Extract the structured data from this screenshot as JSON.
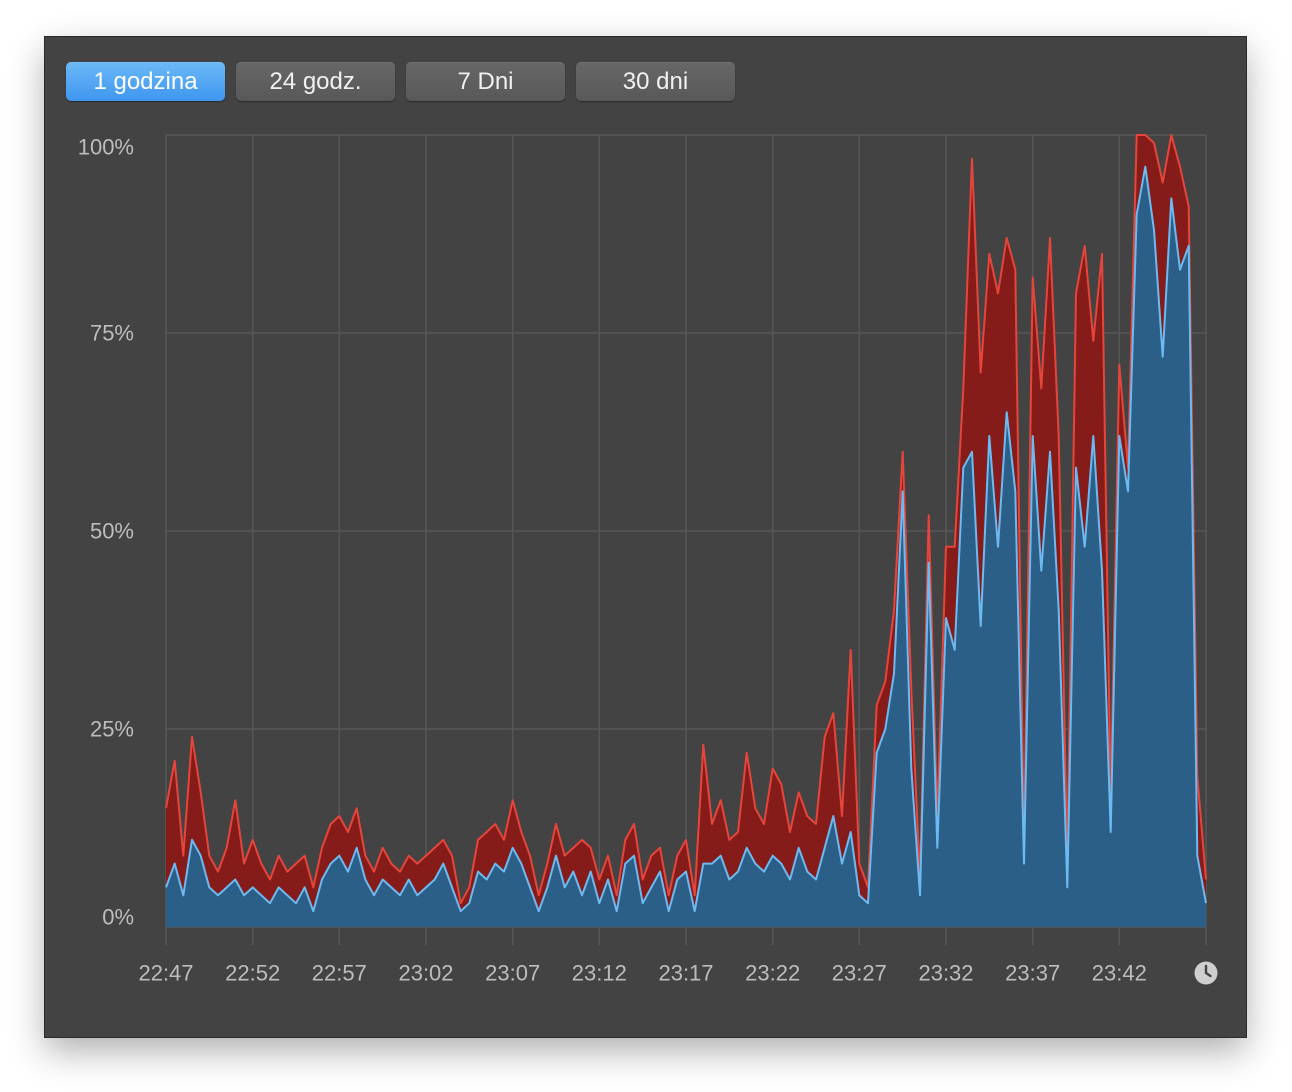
{
  "tabs": [
    {
      "label": "1 godzina",
      "selected": true
    },
    {
      "label": "24 godz.",
      "selected": false
    },
    {
      "label": "7 Dni",
      "selected": false
    },
    {
      "label": "30 dni",
      "selected": false
    }
  ],
  "icons": {
    "time_options": "clock-icon"
  },
  "colors": {
    "window_background": "#434343",
    "selected_tab": "#4a9ff0",
    "tab": "#5f5f5f",
    "grid": "#575757",
    "axis_label": "#bdbdbd"
  },
  "chart_data": {
    "type": "area",
    "stacked": true,
    "grid": true,
    "legend": "none",
    "ylim": [
      0,
      100
    ],
    "yticks": [
      0,
      25,
      50,
      75,
      100
    ],
    "ytick_labels": [
      "0%",
      "25%",
      "50%",
      "75%",
      "100%"
    ],
    "xlim": [
      "22:47:00",
      "23:47:00"
    ],
    "xtick_labels": [
      "22:47",
      "22:52",
      "22:57",
      "23:02",
      "23:07",
      "23:12",
      "23:17",
      "23:22",
      "23:27",
      "23:32",
      "23:37",
      "23:42"
    ],
    "x": [
      "22:47:00",
      "22:47:30",
      "22:48:00",
      "22:48:30",
      "22:49:00",
      "22:49:30",
      "22:50:00",
      "22:50:30",
      "22:51:00",
      "22:51:30",
      "22:52:00",
      "22:52:30",
      "22:53:00",
      "22:53:30",
      "22:54:00",
      "22:54:30",
      "22:55:00",
      "22:55:30",
      "22:56:00",
      "22:56:30",
      "22:57:00",
      "22:57:30",
      "22:58:00",
      "22:58:30",
      "22:59:00",
      "22:59:30",
      "23:00:00",
      "23:00:30",
      "23:01:00",
      "23:01:30",
      "23:02:00",
      "23:02:30",
      "23:03:00",
      "23:03:30",
      "23:04:00",
      "23:04:30",
      "23:05:00",
      "23:05:30",
      "23:06:00",
      "23:06:30",
      "23:07:00",
      "23:07:30",
      "23:08:00",
      "23:08:30",
      "23:09:00",
      "23:09:30",
      "23:10:00",
      "23:10:30",
      "23:11:00",
      "23:11:30",
      "23:12:00",
      "23:12:30",
      "23:13:00",
      "23:13:30",
      "23:14:00",
      "23:14:30",
      "23:15:00",
      "23:15:30",
      "23:16:00",
      "23:16:30",
      "23:17:00",
      "23:17:30",
      "23:18:00",
      "23:18:30",
      "23:19:00",
      "23:19:30",
      "23:20:00",
      "23:20:30",
      "23:21:00",
      "23:21:30",
      "23:22:00",
      "23:22:30",
      "23:23:00",
      "23:23:30",
      "23:24:00",
      "23:24:30",
      "23:25:00",
      "23:25:30",
      "23:26:00",
      "23:26:30",
      "23:27:00",
      "23:27:30",
      "23:28:00",
      "23:28:30",
      "23:29:00",
      "23:29:30",
      "23:30:00",
      "23:30:30",
      "23:31:00",
      "23:31:30",
      "23:32:00",
      "23:32:30",
      "23:33:00",
      "23:33:30",
      "23:34:00",
      "23:34:30",
      "23:35:00",
      "23:35:30",
      "23:36:00",
      "23:36:30",
      "23:37:00",
      "23:37:30",
      "23:38:00",
      "23:38:30",
      "23:39:00",
      "23:39:30",
      "23:40:00",
      "23:40:30",
      "23:41:00",
      "23:41:30",
      "23:42:00",
      "23:42:30",
      "23:43:00",
      "23:43:30",
      "23:44:00",
      "23:44:30",
      "23:45:00",
      "23:45:30",
      "23:46:00",
      "23:46:30",
      "23:47:00"
    ],
    "series": [
      {
        "color": "#6cbaf2",
        "fill": "#2c5f87",
        "values": [
          5,
          8,
          4,
          11,
          9,
          5,
          4,
          5,
          6,
          4,
          5,
          4,
          3,
          5,
          4,
          3,
          5,
          2,
          6,
          8,
          9,
          7,
          10,
          6,
          4,
          6,
          5,
          4,
          6,
          4,
          5,
          6,
          8,
          5,
          2,
          3,
          7,
          6,
          8,
          7,
          10,
          8,
          5,
          2,
          5,
          9,
          5,
          7,
          4,
          7,
          3,
          6,
          2,
          8,
          9,
          3,
          5,
          7,
          2,
          6,
          7,
          2,
          8,
          8,
          9,
          6,
          7,
          10,
          8,
          7,
          9,
          8,
          6,
          10,
          7,
          6,
          10,
          14,
          8,
          12,
          4,
          3,
          22,
          25,
          32,
          55,
          20,
          4,
          46,
          10,
          39,
          35,
          58,
          60,
          38,
          62,
          48,
          65,
          55,
          8,
          62,
          45,
          60,
          40,
          5,
          58,
          48,
          62,
          45,
          12,
          62,
          55,
          90,
          96,
          88,
          72,
          92,
          83,
          86,
          9,
          3
        ]
      },
      {
        "color": "#e5453b",
        "fill": "#861c1a",
        "values": [
          10,
          13,
          5,
          13,
          8,
          4,
          3,
          5,
          10,
          4,
          6,
          4,
          3,
          4,
          3,
          5,
          4,
          3,
          4,
          5,
          5,
          5,
          5,
          3,
          3,
          4,
          3,
          3,
          3,
          4,
          4,
          4,
          3,
          4,
          1,
          2,
          4,
          6,
          5,
          4,
          6,
          4,
          4,
          2,
          3,
          4,
          4,
          3,
          7,
          3,
          3,
          3,
          2,
          3,
          4,
          3,
          4,
          3,
          2,
          3,
          4,
          2,
          15,
          5,
          7,
          5,
          5,
          12,
          7,
          6,
          11,
          10,
          6,
          7,
          7,
          7,
          14,
          13,
          6,
          23,
          4,
          2,
          6,
          6,
          8,
          5,
          10,
          2,
          6,
          4,
          9,
          13,
          10,
          37,
          32,
          23,
          32,
          22,
          28,
          2,
          20,
          23,
          27,
          22,
          3,
          22,
          38,
          12,
          40,
          4,
          9,
          3,
          10,
          4,
          11,
          22,
          8,
          13,
          5,
          10,
          3
        ]
      }
    ]
  }
}
